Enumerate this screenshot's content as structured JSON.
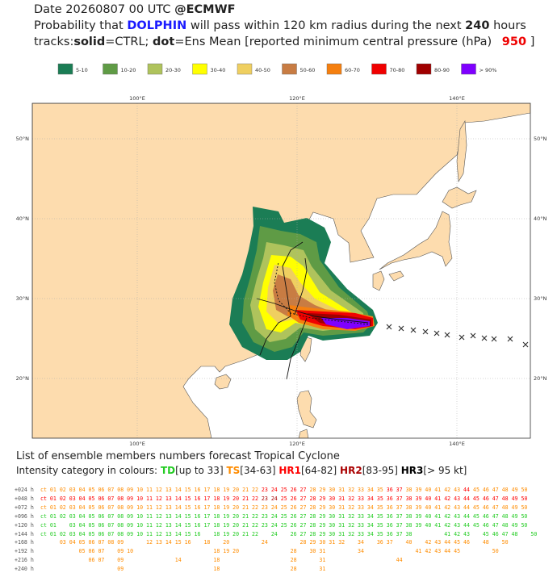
{
  "header": {
    "date": "Date 20260807 00 UTC",
    "org": "@ECMWF",
    "line2": [
      "Probability that",
      "DOLPHIN",
      "will pass within 120 km radius during the next",
      "240",
      "hours"
    ],
    "line3": [
      "tracks:",
      "solid",
      "=CTRL;",
      "dot",
      "=Ens Mean [reported minimum central pressure (hPa)",
      "950",
      "]"
    ]
  },
  "legend": [
    {
      "label": "5-10",
      "color": "#1b7d55"
    },
    {
      "label": "10-20",
      "color": "#5f9b45"
    },
    {
      "label": "20-30",
      "color": "#afc35c"
    },
    {
      "label": "30-40",
      "color": "#ffff00"
    },
    {
      "label": "40-50",
      "color": "#efcf60"
    },
    {
      "label": "50-60",
      "color": "#c87c43"
    },
    {
      "label": "60-70",
      "color": "#f57f0f"
    },
    {
      "label": "70-80",
      "color": "#f00000"
    },
    {
      "label": "80-90",
      "color": "#a00000"
    },
    {
      "label": "> 90%",
      "color": "#7f00ff"
    }
  ],
  "map": {
    "lon_labels": [
      "100°E",
      "120°E",
      "140°E"
    ],
    "lat_labels": [
      "50°N",
      "40°N",
      "30°N",
      "20°N"
    ]
  },
  "footer": {
    "title": "List of ensemble members numbers forecast Tropical Cyclone",
    "intensity_intro": "Intensity category in colours:",
    "categories": [
      {
        "key": "TD",
        "range": "[up to 33]",
        "color": "#22cc22"
      },
      {
        "key": "TS",
        "range": "[34-63]",
        "color": "#ff8c00"
      },
      {
        "key": "HR1",
        "range": "[64-82]",
        "color": "#ff0000"
      },
      {
        "key": "HR2",
        "range": "[83-95]",
        "color": "#aa0000"
      },
      {
        "key": "HR3",
        "range": "[> 95 kt]",
        "color": "#000000"
      }
    ]
  },
  "table": {
    "rows": [
      {
        "label": "+024 h",
        "segments": [
          {
            "cat": 1,
            "text": "ct 01 02 03 04 05 06 07 08 09 10 11 12 13 14 15 16 17 18 19 20 21 22 "
          },
          {
            "cat": 2,
            "text": "23 24 25 26 27 "
          },
          {
            "cat": 1,
            "text": "28 29 30 31 32 33 34 35 "
          },
          {
            "cat": 2,
            "text": "36 37 "
          },
          {
            "cat": 1,
            "text": "38 39 40 41 42 43 "
          },
          {
            "cat": 2,
            "text": "44 "
          },
          {
            "cat": 1,
            "text": "45 46 47 48 49 50"
          }
        ]
      },
      {
        "label": "+048 h",
        "segments": [
          {
            "cat": 2,
            "text": "ct 01 02 03 04 05 06 07 08 09 10 11 12 13 14 15 16 17 18 19 20 21 22 "
          },
          {
            "cat": 3,
            "text": "23 24 "
          },
          {
            "cat": 2,
            "text": "25 26 27 28 29 30 31 32 33 34 35 36 37 38 39 40 41 42 43 44 45 46 47 48 49 50"
          }
        ]
      },
      {
        "label": "+072 h",
        "segments": [
          {
            "cat": 1,
            "text": "ct 01 02 03 04 05 06 07 08 09 10 11 12 13 14 15 16 17 18 19 20 21 22 23 24 25 26 27 28 29 30 31 32 33 34 35 36 37 38 39 40 41 42 43 44 45 46 47 48 49 50"
          }
        ]
      },
      {
        "label": "+096 h",
        "segments": [
          {
            "cat": 0,
            "text": "ct 01 02 03 04 05 06 07 08 09 10 11 12 13 14 15 16 17 18 19 20 21 22 23 24 25 26 27 28 29 30 31 32 33 34 35 36 37 38 39 40 41 42 43 44 45 46 47 48 49 50"
          }
        ]
      },
      {
        "label": "+120 h",
        "segments": [
          {
            "cat": 0,
            "text": "ct 01    03 04 05 06 07 08 09 10 11 12 13 14 15 16 17 18 19 20 21 22 23 24 25 26 27 28 29 30 31 32 33 34 35 36 37 38 39 40 41 42 43 44 45 46 47 48 49 50"
          }
        ]
      },
      {
        "label": "+144 h",
        "segments": [
          {
            "cat": 0,
            "text": "ct 01 02 03 04 05 06 07 08 09 10 11 12 13 14 15 16    18 19 20 21 22    24    26 27 28 29 30 31 32 33 34 35 36 37 38          41 42 43    45 46 47 48    50"
          }
        ]
      },
      {
        "label": "+168 h",
        "segments": [
          {
            "cat": 1,
            "text": "      03 04 05 06 07 08 09       12 13 14 15 16    18    20          24          28 29 30 31 32    34    36 37    40    42 43 44 45 46    48    50"
          }
        ]
      },
      {
        "label": "+192 h",
        "segments": [
          {
            "cat": 1,
            "text": "            05 06 07    09 10                         18 19 20                28    30 31          34                41 42 43 44 45          50"
          }
        ]
      },
      {
        "label": "+216 h",
        "segments": [
          {
            "cat": 1,
            "text": "               06 07    09                14          18                      28       31                      44"
          }
        ]
      },
      {
        "label": "+240 h",
        "segments": [
          {
            "cat": 1,
            "text": "                        09                            18                      28       31"
          }
        ]
      }
    ]
  }
}
